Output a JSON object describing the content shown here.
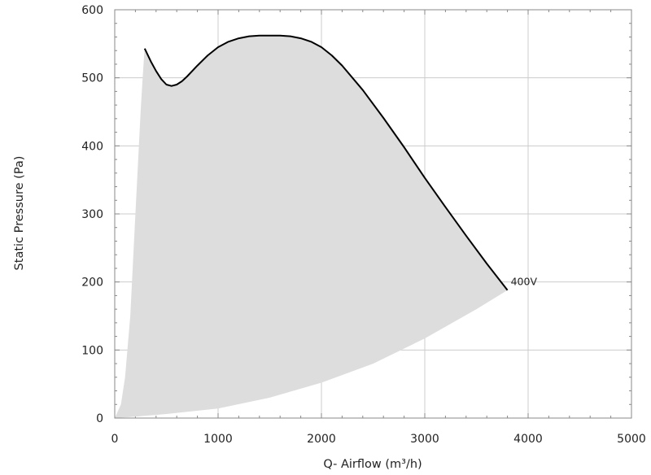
{
  "chart_data": {
    "type": "area",
    "title": "",
    "xlabel": "Q- Airflow (m³/h)",
    "ylabel": "Static Pressure (Pa)",
    "xlim": [
      0,
      5000
    ],
    "ylim": [
      0,
      600
    ],
    "x_ticks": [
      "0",
      "1000",
      "2000",
      "3000",
      "4000",
      "5000"
    ],
    "y_ticks": [
      "0",
      "100",
      "200",
      "300",
      "400",
      "500",
      "600"
    ],
    "grid": true,
    "colors": {
      "operating_area": "#dddddd",
      "curve": "#000000",
      "grid": "#cccccc",
      "frame": "#888888"
    },
    "operating_area": {
      "lower_boundary": [
        [
          0,
          0
        ],
        [
          200,
          2
        ],
        [
          500,
          6
        ],
        [
          1000,
          14
        ],
        [
          1500,
          30
        ],
        [
          2000,
          52
        ],
        [
          2500,
          80
        ],
        [
          3000,
          117
        ],
        [
          3500,
          160
        ],
        [
          3800,
          188
        ]
      ],
      "left_boundary": [
        [
          0,
          0
        ],
        [
          60,
          20
        ],
        [
          100,
          60
        ],
        [
          150,
          150
        ],
        [
          200,
          300
        ],
        [
          250,
          450
        ],
        [
          270,
          500
        ],
        [
          290,
          545
        ]
      ]
    },
    "series": [
      {
        "name": "400V",
        "x": [
          290,
          350,
          400,
          450,
          500,
          550,
          600,
          650,
          700,
          800,
          900,
          1000,
          1100,
          1200,
          1300,
          1400,
          1500,
          1600,
          1700,
          1800,
          1900,
          2000,
          2100,
          2200,
          2400,
          2600,
          2800,
          3000,
          3200,
          3400,
          3600,
          3800
        ],
        "y": [
          543,
          524,
          510,
          498,
          490,
          488,
          490,
          495,
          502,
          518,
          533,
          545,
          553,
          558,
          561,
          562,
          562,
          562,
          561,
          558,
          553,
          545,
          533,
          518,
          482,
          441,
          398,
          353,
          310,
          268,
          227,
          188
        ]
      }
    ]
  }
}
